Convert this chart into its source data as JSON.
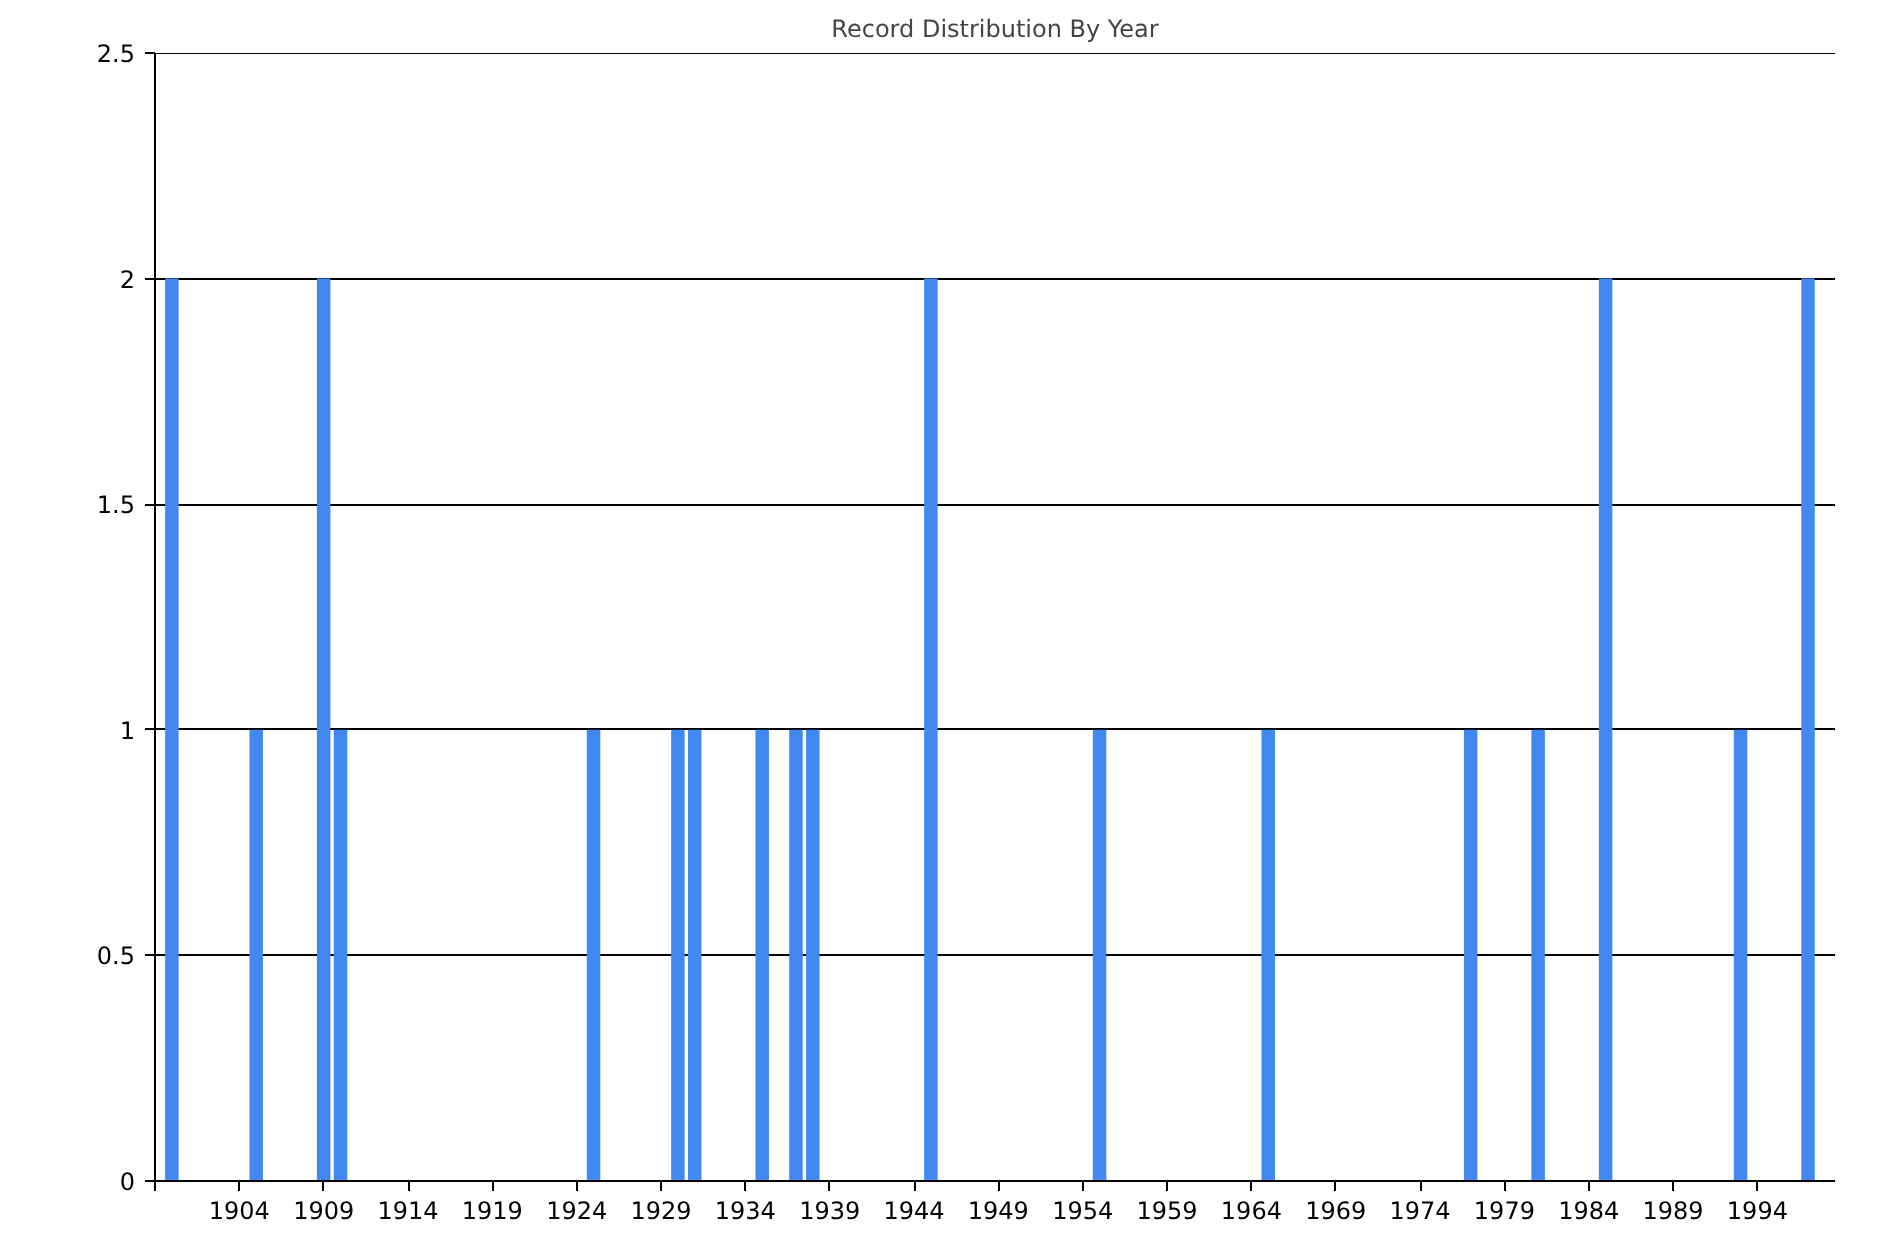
{
  "chart_data": {
    "type": "bar",
    "title": "Record Distribution By Year",
    "x": [
      1900,
      1905,
      1909,
      1910,
      1925,
      1930,
      1931,
      1935,
      1937,
      1938,
      1945,
      1955,
      1965,
      1977,
      1981,
      1985,
      1993,
      1997
    ],
    "values": [
      2,
      1,
      2,
      1,
      1,
      1,
      1,
      1,
      1,
      1,
      2,
      1,
      1,
      1,
      1,
      2,
      1,
      2
    ],
    "color": "#4189f0",
    "xlim": [
      1899,
      1998.6
    ],
    "xticks": [
      {
        "value": 1899,
        "label": null
      },
      1904,
      1909,
      1914,
      1919,
      1924,
      1929,
      1934,
      1939,
      1944,
      1949,
      1954,
      1959,
      1964,
      1969,
      1974,
      1979,
      1984,
      1989,
      1994
    ],
    "ylim": [
      0,
      2.5
    ],
    "yticks": [
      0,
      0.5,
      1,
      1.5,
      2,
      2.5
    ],
    "grid": "y"
  }
}
